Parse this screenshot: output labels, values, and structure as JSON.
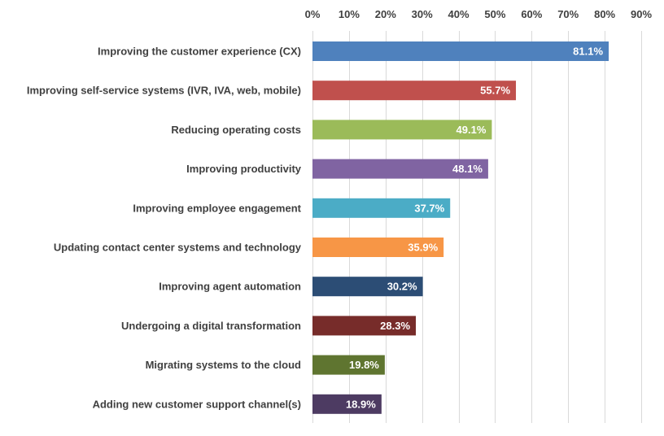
{
  "chart_data": {
    "type": "bar",
    "orientation": "horizontal",
    "categories": [
      "Improving the customer experience (CX)",
      "Improving self-service systems (IVR, IVA, web, mobile)",
      "Reducing operating costs",
      "Improving productivity",
      "Improving employee engagement",
      "Updating contact center systems and technology",
      "Improving agent automation",
      "Undergoing a digital transformation",
      "Migrating systems to the cloud",
      "Adding new customer support channel(s)"
    ],
    "values": [
      81.1,
      55.7,
      49.1,
      48.1,
      37.7,
      35.9,
      30.2,
      28.3,
      19.8,
      18.9
    ],
    "data_labels": [
      "81.1%",
      "55.7%",
      "49.1%",
      "48.1%",
      "37.7%",
      "35.9%",
      "30.2%",
      "28.3%",
      "19.8%",
      "18.9%"
    ],
    "colors": [
      "#4f81bd",
      "#c0504d",
      "#9bbb59",
      "#8064a2",
      "#4bacc6",
      "#f79646",
      "#2c4d75",
      "#772c2a",
      "#5f7530",
      "#4d3b62"
    ],
    "xlim": [
      0,
      90
    ],
    "x_ticks": [
      0,
      10,
      20,
      30,
      40,
      50,
      60,
      70,
      80,
      90
    ],
    "x_tick_labels": [
      "0%",
      "10%",
      "20%",
      "30%",
      "40%",
      "50%",
      "60%",
      "70%",
      "80%",
      "90%"
    ],
    "x_axis_position": "top",
    "grid": true,
    "legend": false,
    "title": "",
    "xlabel": "",
    "ylabel": ""
  }
}
